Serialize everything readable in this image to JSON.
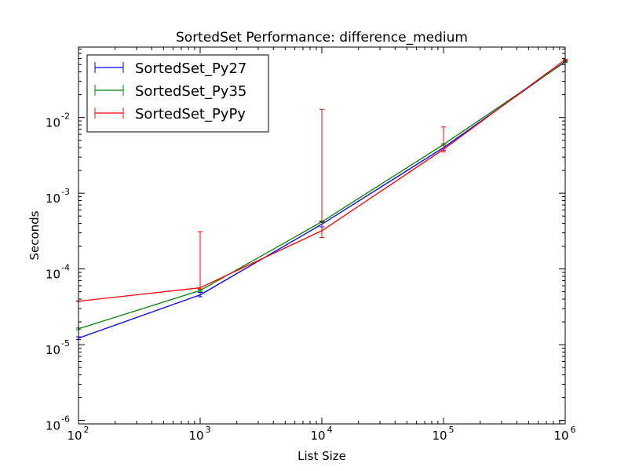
{
  "chart_data": {
    "type": "line",
    "title": "SortedSet Performance: difference_medium",
    "xlabel": "List Size",
    "ylabel": "Seconds",
    "xscale": "log",
    "yscale": "log",
    "xlim": [
      100,
      1000000
    ],
    "ylim": [
      9e-07,
      0.085
    ],
    "grid": false,
    "legend_position": "top-left",
    "x_ticks": [
      {
        "value": 100,
        "base": "10",
        "exp": "2"
      },
      {
        "value": 1000,
        "base": "10",
        "exp": "3"
      },
      {
        "value": 10000,
        "base": "10",
        "exp": "4"
      },
      {
        "value": 100000,
        "base": "10",
        "exp": "5"
      },
      {
        "value": 1000000,
        "base": "10",
        "exp": "6"
      }
    ],
    "y_ticks": [
      {
        "value": 1e-06,
        "base": "10",
        "exp": "-6"
      },
      {
        "value": 1e-05,
        "base": "10",
        "exp": "-5"
      },
      {
        "value": 0.0001,
        "base": "10",
        "exp": "-4"
      },
      {
        "value": 0.001,
        "base": "10",
        "exp": "-3"
      },
      {
        "value": 0.01,
        "base": "10",
        "exp": "-2"
      }
    ],
    "x": [
      100,
      1000,
      10000,
      100000,
      1000000
    ],
    "series": [
      {
        "name": "SortedSet_Py27",
        "color": "#0000ff",
        "values": [
          1.22e-05,
          4.55e-05,
          0.00039,
          0.004,
          0.055
        ],
        "err_low": [
          1.17e-05,
          4.3e-05,
          0.00036,
          0.0037,
          0.054
        ],
        "err_high": [
          1.27e-05,
          4.9e-05,
          0.00042,
          0.0043,
          0.056
        ]
      },
      {
        "name": "SortedSet_Py35",
        "color": "#008000",
        "values": [
          1.62e-05,
          5.2e-05,
          0.00042,
          0.0044,
          0.054
        ],
        "err_low": [
          1.58e-05,
          5.05e-05,
          0.00041,
          0.0043,
          0.0535
        ],
        "err_high": [
          1.66e-05,
          5.35e-05,
          0.00043,
          0.0045,
          0.0545
        ]
      },
      {
        "name": "SortedSet_PyPy",
        "color": "#ff0000",
        "values": [
          3.75e-05,
          5.65e-05,
          0.00032,
          0.0038,
          0.058
        ],
        "err_low": [
          3.72e-05,
          5.45e-05,
          0.00026,
          0.0035,
          0.057
        ],
        "err_high": [
          3.78e-05,
          0.00031,
          0.0128,
          0.0075,
          0.059
        ]
      }
    ]
  }
}
